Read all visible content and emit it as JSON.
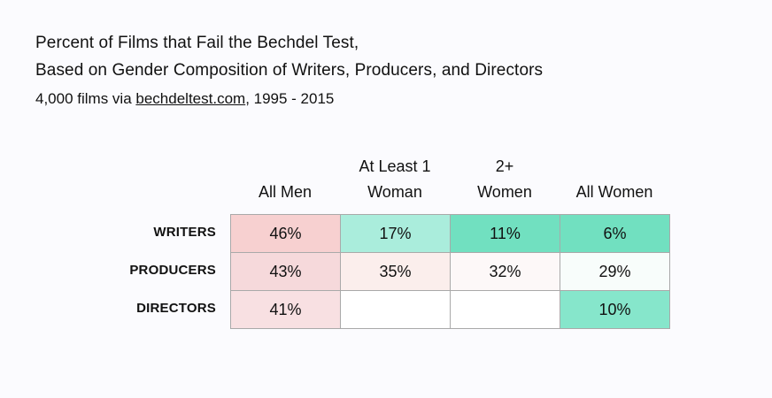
{
  "title_line1": "Percent of Films that Fail the Bechdel Test,",
  "title_line2": "Based on Gender Composition of Writers, Producers, and Directors",
  "subtitle_pre": "4,000 films via ",
  "subtitle_link": "bechdeltest.com",
  "subtitle_post": ", 1995 - 2015",
  "chart_data": {
    "type": "heatmap",
    "columns": [
      {
        "line1": "",
        "line2": "All Men"
      },
      {
        "line1": "At Least 1",
        "line2": "Woman"
      },
      {
        "line1": "2+",
        "line2": "Women"
      },
      {
        "line1": "",
        "line2": "All Women"
      }
    ],
    "rows": [
      {
        "label": "WRITERS",
        "values": [
          46,
          17,
          11,
          6
        ]
      },
      {
        "label": "PRODUCERS",
        "values": [
          43,
          35,
          32,
          29
        ]
      },
      {
        "label": "DIRECTORS",
        "values": [
          41,
          null,
          null,
          10
        ]
      }
    ],
    "unit": "%",
    "cell_colors": [
      [
        "#f7d0d0",
        "#aaeddc",
        "#71e0c0",
        "#71e0c0"
      ],
      [
        "#f6d9db",
        "#fbeeec",
        "#fdf8f8",
        "#f8fdfb"
      ],
      [
        "#f8e0e2",
        "#ffffff",
        "#ffffff",
        "#86e6cb"
      ]
    ]
  }
}
